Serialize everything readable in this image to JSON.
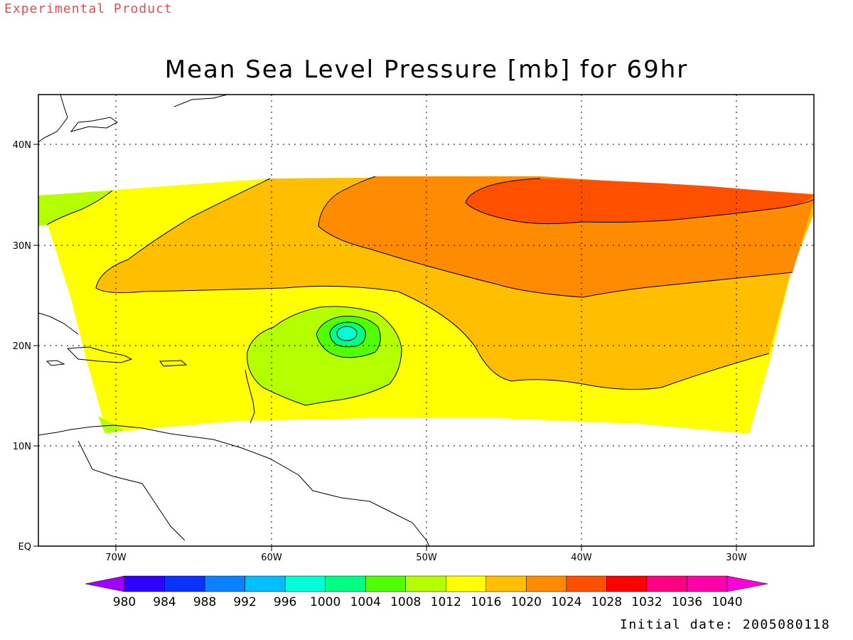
{
  "header": {
    "experimental_label": "Experimental Product",
    "title": "Mean Sea Level Pressure [mb] for 69hr"
  },
  "footer": {
    "initial_date": "Initial date: 2005080118"
  },
  "map": {
    "lon_labels": [
      "70W",
      "60W",
      "50W",
      "40W",
      "30W"
    ],
    "lat_labels": [
      "40N",
      "30N",
      "20N",
      "10N",
      "EQ"
    ],
    "lon_range": [
      -75,
      -25
    ],
    "lat_range": [
      0,
      45
    ],
    "grid": "dotted"
  },
  "colorbar": {
    "labels": [
      "980",
      "984",
      "988",
      "992",
      "996",
      "1000",
      "1004",
      "1008",
      "1012",
      "1016",
      "1020",
      "1024",
      "1028",
      "1032",
      "1036",
      "1040"
    ],
    "colors": [
      "#a000ff",
      "#3000ff",
      "#0a32ff",
      "#0a82ff",
      "#00beff",
      "#00ffd7",
      "#00ff82",
      "#50ff00",
      "#b4ff00",
      "#ffff00",
      "#ffbe00",
      "#ff8c00",
      "#ff5000",
      "#ff0000",
      "#ff0082",
      "#ff00aa",
      "#ff00dc"
    ]
  },
  "fields": {
    "colors": {
      "p1008": "#b4ff00",
      "p1012": "#ffff00",
      "p1016": "#ffbe00",
      "p1020": "#ff8c00",
      "p1024": "#ff5000",
      "p1004": "#50ff00",
      "p1000": "#00ff82",
      "p996": "#00ffd7"
    }
  }
}
